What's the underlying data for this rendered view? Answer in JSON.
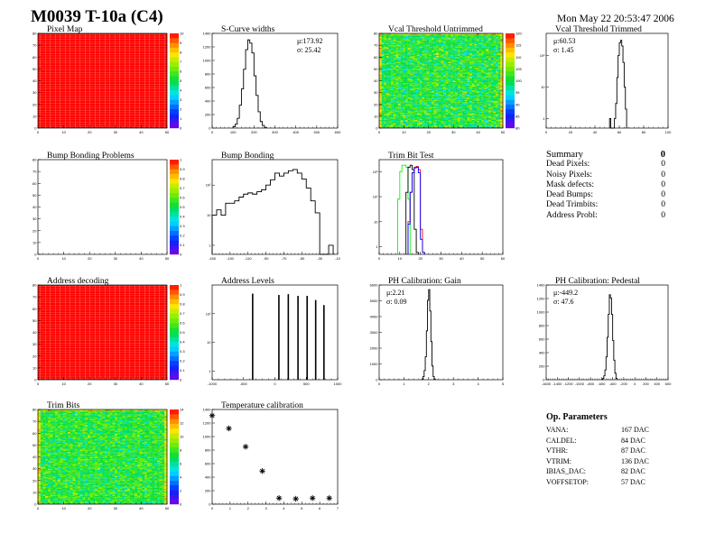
{
  "header": {
    "title": "M0039 T-10a (C4)",
    "date": "Mon May 22 20:53:47 2006"
  },
  "summary": {
    "title": "Summary",
    "total": "0",
    "items": [
      {
        "label": "Dead Pixels:",
        "value": "0"
      },
      {
        "label": "Noisy Pixels:",
        "value": "0"
      },
      {
        "label": "Mask defects:",
        "value": "0"
      },
      {
        "label": "Dead Bumps:",
        "value": "0"
      },
      {
        "label": "Dead Trimbits:",
        "value": "0"
      },
      {
        "label": "Address Probl:",
        "value": "0"
      }
    ]
  },
  "op_parameters": {
    "title": "Op. Parameters",
    "items": [
      {
        "label": "VANA:",
        "value": "167 DAC"
      },
      {
        "label": "CALDEL:",
        "value": "84 DAC"
      },
      {
        "label": "VTHR:",
        "value": "87 DAC"
      },
      {
        "label": "VTRIM:",
        "value": "136 DAC"
      },
      {
        "label": "IBIAS_DAC:",
        "value": "82 DAC"
      },
      {
        "label": "VOFFSETOP:",
        "value": "57 DAC"
      }
    ]
  },
  "colors": {
    "palette": "rainbow",
    "line": "#000000",
    "trim_series": [
      "#000000",
      "#ff0000",
      "#00ff00",
      "#0000ff"
    ]
  },
  "chart_data": [
    {
      "type": "heatmap",
      "title": "Pixel Map",
      "xlim": [
        0,
        52
      ],
      "ylim": [
        0,
        80
      ],
      "zlim": [
        0,
        10
      ],
      "fill": "uniform",
      "z_value": 10,
      "xticks": [
        "0",
        "10",
        "20",
        "30",
        "40",
        "50"
      ],
      "yticks": [
        "0",
        "10",
        "20",
        "30",
        "40",
        "50",
        "60",
        "70",
        "80"
      ],
      "zticks": [
        "0",
        "1",
        "2",
        "3",
        "4",
        "5",
        "6",
        "7",
        "8",
        "9",
        "10"
      ]
    },
    {
      "type": "bar",
      "title": "S-Curve widths",
      "xlim": [
        0,
        600
      ],
      "ylim": [
        0,
        1450
      ],
      "bin_width": 10,
      "bin_start": 100,
      "values": [
        20,
        60,
        150,
        350,
        600,
        900,
        1200,
        1350,
        1300,
        1150,
        800,
        500,
        250,
        100,
        40,
        10
      ],
      "xticks": [
        "0",
        "100",
        "200",
        "300",
        "400",
        "500",
        "600"
      ],
      "yticks": [
        "0",
        "200",
        "400",
        "600",
        "800",
        "1000",
        "1200",
        "1400"
      ],
      "stats": {
        "mean": "μ:173.92",
        "sigma": "σ: 25.42"
      }
    },
    {
      "type": "heatmap",
      "title": "Vcal Threshold Untrimmed",
      "xlim": [
        0,
        52
      ],
      "ylim": [
        0,
        80
      ],
      "zlim": [
        80,
        120
      ],
      "fill": "noise",
      "z_mean": 101,
      "z_spread": 6,
      "xticks": [
        "0",
        "10",
        "20",
        "30",
        "40",
        "50"
      ],
      "yticks": [
        "0",
        "10",
        "20",
        "30",
        "40",
        "50",
        "60",
        "70",
        "80"
      ],
      "zticks": [
        "80",
        "85",
        "90",
        "95",
        "100",
        "105",
        "110",
        "115",
        "120"
      ]
    },
    {
      "type": "bar",
      "title": "Vcal Threshold Trimmed",
      "xlim": [
        0,
        100
      ],
      "ylim": [
        0.5,
        500
      ],
      "log_y": true,
      "bin_width": 1,
      "bin_start": 52,
      "values": [
        1,
        0,
        0,
        0,
        1,
        3,
        20,
        100,
        250,
        300,
        200,
        60,
        10,
        2
      ],
      "xticks": [
        "0",
        "20",
        "40",
        "60",
        "80",
        "100"
      ],
      "yticks": [
        "1",
        "10",
        "10²"
      ],
      "stats": {
        "mean": "μ:60.53",
        "sigma": "σ: 1.45"
      }
    },
    {
      "type": "heatmap",
      "title": "Bump Bonding Problems",
      "xlim": [
        0,
        52
      ],
      "ylim": [
        0,
        80
      ],
      "zlim": [
        0,
        1
      ],
      "fill": "empty",
      "xticks": [
        "0",
        "10",
        "20",
        "30",
        "40",
        "50"
      ],
      "yticks": [
        "0",
        "10",
        "20",
        "30",
        "40",
        "50",
        "60",
        "70",
        "80"
      ],
      "zticks": [
        "0",
        "0.1",
        "0.2",
        "0.3",
        "0.4",
        "0.5",
        "0.6",
        "0.7",
        "0.8",
        "0.9",
        "1"
      ]
    },
    {
      "type": "bar",
      "title": "Bump Bonding",
      "xlim": [
        -150,
        -10
      ],
      "ylim": [
        0.5,
        700
      ],
      "log_y": true,
      "bin_width": 5,
      "bin_start": -150,
      "values": [
        10,
        15,
        10,
        25,
        25,
        30,
        40,
        50,
        55,
        50,
        60,
        70,
        100,
        150,
        250,
        200,
        250,
        300,
        330,
        250,
        160,
        80,
        30,
        12,
        0,
        0,
        1
      ],
      "xticks": [
        "-150",
        "-130",
        "-110",
        "-90",
        "-70",
        "-50",
        "-30",
        "-10"
      ],
      "yticks": [
        "1",
        "10",
        "10²"
      ]
    },
    {
      "type": "bar",
      "title": "Trim Bit Test",
      "xlim": [
        0,
        60
      ],
      "ylim": [
        0.5,
        3000
      ],
      "log_y": true,
      "bin_width": 1,
      "series": [
        {
          "color": "#00ff00",
          "bin_start": 9,
          "values": [
            80,
            1000,
            1800,
            1800,
            1500,
            80
          ]
        },
        {
          "color": "#000000",
          "bin_start": 13,
          "values": [
            150,
            1500,
            1800,
            1200,
            5,
            0.6
          ]
        },
        {
          "color": "#ff0000",
          "bin_start": 14,
          "values": [
            10,
            150,
            900,
            1500,
            1600,
            1200,
            5,
            0.6
          ]
        },
        {
          "color": "#0000ff",
          "bin_start": 14,
          "values": [
            8,
            150,
            900,
            1400,
            1500,
            900,
            2,
            0.6
          ]
        }
      ],
      "xticks": [
        "0",
        "10",
        "20",
        "30",
        "40",
        "50",
        "60"
      ],
      "yticks": [
        "1",
        "10",
        "10²",
        "10³"
      ]
    },
    {
      "type": "heatmap",
      "title": "Address decoding",
      "xlim": [
        0,
        52
      ],
      "ylim": [
        0,
        80
      ],
      "zlim": [
        0,
        1
      ],
      "fill": "uniform",
      "z_value": 1,
      "xticks": [
        "0",
        "10",
        "20",
        "30",
        "40",
        "50"
      ],
      "yticks": [
        "0",
        "10",
        "20",
        "30",
        "40",
        "50",
        "60",
        "70",
        "80"
      ],
      "zticks": [
        "0",
        "0.1",
        "0.2",
        "0.3",
        "0.4",
        "0.5",
        "0.6",
        "0.7",
        "0.8",
        "0.9",
        "1"
      ]
    },
    {
      "type": "spikes",
      "title": "Address Levels",
      "xlim": [
        -1200,
        1000
      ],
      "ylim": [
        0.5,
        1000
      ],
      "log_y": true,
      "x": [
        -490,
        -30,
        135,
        305,
        465,
        615,
        760
      ],
      "values": [
        500,
        450,
        480,
        420,
        420,
        300,
        200
      ],
      "xticks": [
        "-1000",
        "-500",
        "0",
        "500",
        "1000"
      ],
      "yticks": [
        "1",
        "10",
        "10²"
      ]
    },
    {
      "type": "bar",
      "title": "PH Calibration: Gain",
      "xlim": [
        0,
        5.5
      ],
      "ylim": [
        0,
        6200
      ],
      "bin_width": 0.05,
      "bin_start": 1.9,
      "values": [
        50,
        200,
        600,
        1500,
        3200,
        5200,
        5900,
        4500,
        2500,
        900,
        200,
        40
      ],
      "xticks": [
        "0",
        "1",
        "2",
        "3",
        "4",
        "5"
      ],
      "yticks": [
        "0",
        "1000",
        "2000",
        "3000",
        "4000",
        "5000",
        "6000"
      ],
      "stats": {
        "mean": "μ:2.21",
        "sigma": "σ: 0.09"
      }
    },
    {
      "type": "bar",
      "title": "PH Calibration: Pedestal",
      "xlim": [
        -1600,
        600
      ],
      "ylim": [
        0,
        1450
      ],
      "bin_width": 20,
      "bin_start": -600,
      "values": [
        5,
        20,
        60,
        150,
        350,
        650,
        1000,
        1300,
        1250,
        1000,
        600,
        300,
        100,
        20
      ],
      "xticks": [
        "-1600",
        "-1400",
        "-1200",
        "-1000",
        "-800",
        "-600",
        "-400",
        "-200",
        "0",
        "200",
        "400",
        "600"
      ],
      "yticks": [
        "0",
        "200",
        "400",
        "600",
        "800",
        "1000",
        "1200",
        "1400"
      ],
      "stats": {
        "mean": "μ:-449.2",
        "sigma": "σ: 47.6"
      }
    },
    {
      "type": "heatmap",
      "title": "Trim Bits",
      "xlim": [
        0,
        52
      ],
      "ylim": [
        0,
        80
      ],
      "zlim": [
        0,
        14
      ],
      "fill": "noise",
      "z_mean": 7.5,
      "z_spread": 1.8,
      "xticks": [
        "0",
        "10",
        "20",
        "30",
        "40",
        "50"
      ],
      "yticks": [
        "0",
        "10",
        "20",
        "30",
        "40",
        "50",
        "60",
        "70",
        "80"
      ],
      "zticks": [
        "0",
        "2",
        "4",
        "6",
        "8",
        "10",
        "12",
        "14"
      ]
    },
    {
      "type": "scatter",
      "title": "Temperature calibration",
      "xlim": [
        0,
        7.5
      ],
      "ylim": [
        0,
        1400
      ],
      "x": [
        0,
        1,
        2,
        3,
        4,
        5,
        6,
        7
      ],
      "values": [
        1310,
        1120,
        850,
        490,
        90,
        80,
        90,
        90
      ],
      "xticks": [
        "0",
        "1",
        "2",
        "3",
        "4",
        "5",
        "6",
        "7"
      ],
      "yticks": [
        "0",
        "200",
        "400",
        "600",
        "800",
        "1000",
        "1200",
        "1400"
      ]
    }
  ]
}
